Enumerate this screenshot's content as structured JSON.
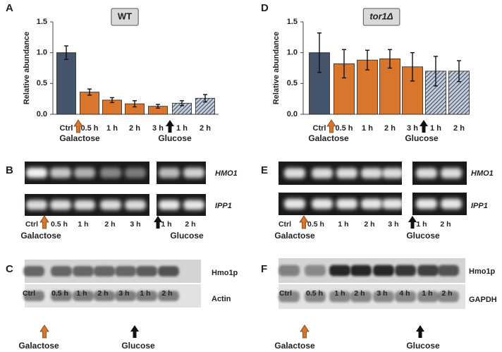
{
  "chart_data": [
    {
      "type": "bar",
      "panel": "A",
      "title": "WT",
      "ylabel": "Relative abundance",
      "categories": [
        "Ctrl",
        "0.5 h",
        "1 h",
        "2 h",
        "3 h",
        "1 h",
        "2 h"
      ],
      "values": [
        1.0,
        0.36,
        0.23,
        0.17,
        0.13,
        0.18,
        0.26
      ],
      "errors": [
        0.11,
        0.05,
        0.04,
        0.05,
        0.03,
        0.04,
        0.06
      ],
      "colors": [
        "#44546a",
        "#d9762b",
        "#d9762b",
        "#d9762b",
        "#d9762b",
        "#44546a",
        "#44546a"
      ],
      "hatched": [
        false,
        false,
        false,
        false,
        false,
        true,
        true
      ],
      "group_labels": [
        "Galactose",
        "Glucose"
      ],
      "ylim": [
        0,
        1.5
      ],
      "yticks": [
        {
          "value": 0,
          "label": "0.0"
        },
        {
          "value": 0.5,
          "label": "0.5"
        },
        {
          "value": 1,
          "label": "1.0"
        },
        {
          "value": 1.5,
          "label": "1.5"
        }
      ]
    },
    {
      "type": "bar",
      "panel": "D",
      "title": "tor1Δ",
      "ylabel": "Relative abundance",
      "categories": [
        "Ctrl",
        "0.5 h",
        "1 h",
        "2 h",
        "3 h",
        "1 h",
        "2 h"
      ],
      "values": [
        1.0,
        0.82,
        0.88,
        0.9,
        0.77,
        0.7,
        0.7
      ],
      "errors": [
        0.32,
        0.23,
        0.16,
        0.15,
        0.23,
        0.24,
        0.17
      ],
      "colors": [
        "#44546a",
        "#d9762b",
        "#d9762b",
        "#d9762b",
        "#d9762b",
        "#44546a",
        "#44546a"
      ],
      "hatched": [
        false,
        false,
        false,
        false,
        false,
        true,
        true
      ],
      "group_labels": [
        "Galactose",
        "Glucose"
      ],
      "ylim": [
        0,
        1.5
      ],
      "yticks": [
        {
          "value": 0,
          "label": "0.0"
        },
        {
          "value": 0.5,
          "label": "0.5"
        },
        {
          "value": 1,
          "label": "1.0"
        },
        {
          "value": 1.5,
          "label": "1.5"
        }
      ]
    }
  ],
  "gels": [
    {
      "panel": "B",
      "rows": [
        "HMO1",
        "IPP1"
      ],
      "lanes": [
        "Ctrl",
        "0.5 h",
        "1 h",
        "2 h",
        "3 h",
        "1 h",
        "2 h"
      ],
      "group_labels": [
        "Galactose",
        "Glucose"
      ]
    },
    {
      "panel": "E",
      "rows": [
        "HMO1",
        "IPP1"
      ],
      "lanes": [
        "Ctrl",
        "0.5 h",
        "1 h",
        "2 h",
        "3 h",
        "1 h",
        "2 h"
      ],
      "group_labels": [
        "Galactose",
        "Glucose"
      ]
    },
    {
      "panel": "C",
      "rows": [
        "Hmo1p",
        "Actin"
      ],
      "lanes": [
        "Ctrl",
        "0.5 h",
        "1 h",
        "2 h",
        "3 h",
        "1 h",
        "2 h"
      ],
      "group_labels": [
        "Galactose",
        "Glucose"
      ]
    },
    {
      "panel": "F",
      "rows": [
        "Hmo1p",
        "GAPDH"
      ],
      "lanes": [
        "Ctrl",
        "0.5 h",
        "1 h",
        "2 h",
        "3 h",
        "4 h",
        "1 h",
        "2 h"
      ],
      "group_labels": [
        "Galactose",
        "Glucose"
      ]
    }
  ]
}
